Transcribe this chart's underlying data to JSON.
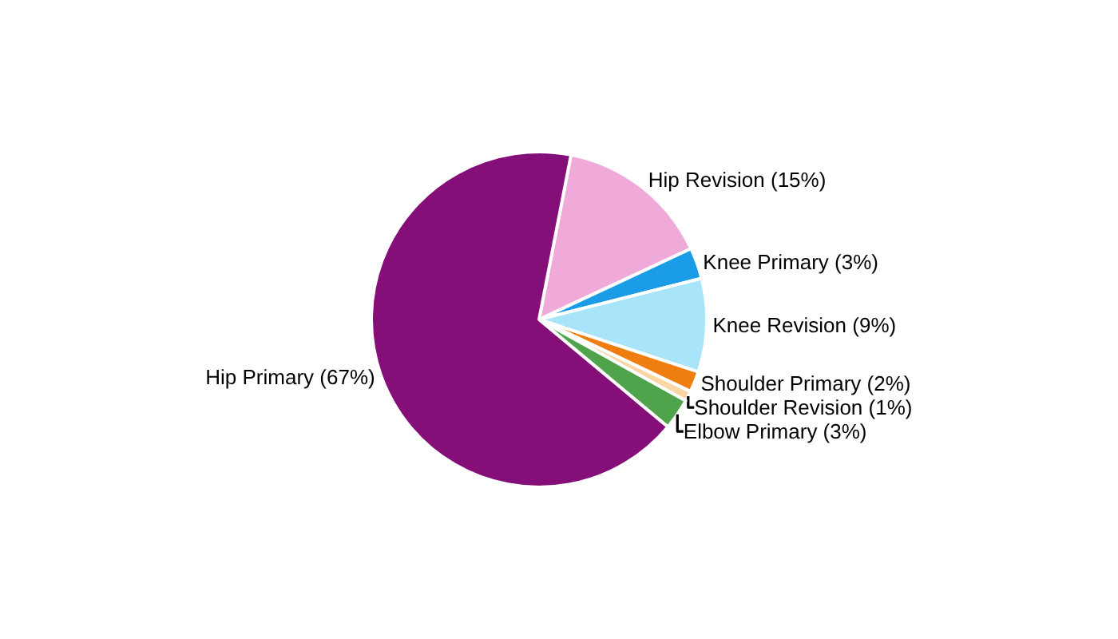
{
  "chart_data": {
    "type": "pie",
    "categories": [
      "Hip Revision (15%)",
      "Knee Primary (3%)",
      "Knee Revision (9%)",
      "Shoulder Primary (2%)",
      "Shoulder Revision (1%)",
      "Elbow Primary (3%)",
      "Hip Primary (67%)"
    ],
    "values": [
      15,
      3,
      9,
      2,
      1,
      3,
      67
    ],
    "colors": [
      "#f0aad9",
      "#1a9de6",
      "#a8e4fa",
      "#f07d10",
      "#f9d6a4",
      "#4fa34b",
      "#850f78"
    ],
    "legend": false
  }
}
